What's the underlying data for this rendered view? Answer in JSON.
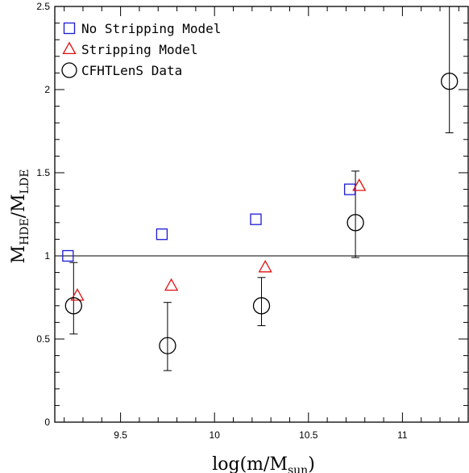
{
  "chart_data": {
    "type": "scatter",
    "xlabel_main": "log(m/M",
    "xlabel_sub": "sun",
    "xlabel_close": ")",
    "ylabel_num_main": "M",
    "ylabel_num_sub": "HDE",
    "ylabel_slash": "/",
    "ylabel_den_main": "M",
    "ylabel_den_sub": "LDE",
    "xlim": [
      9.15,
      11.35
    ],
    "ylim": [
      0,
      2.5
    ],
    "xticks": [
      9.5,
      10,
      10.5,
      11
    ],
    "xtick_labels": [
      "9.5",
      "10",
      "10.5",
      "11"
    ],
    "yticks": [
      0,
      0.5,
      1,
      1.5,
      2,
      2.5
    ],
    "ytick_labels": [
      "0",
      "0.5",
      "1",
      "1.5",
      "2",
      "2.5"
    ],
    "reference_line_y": 1,
    "legend_position": "top-left",
    "series": [
      {
        "name": "No Stripping Model",
        "marker": "square",
        "color": "#1a1ad6",
        "x": [
          9.22,
          9.72,
          10.22,
          10.72
        ],
        "y": [
          1.0,
          1.13,
          1.22,
          1.4
        ]
      },
      {
        "name": "Stripping Model",
        "marker": "triangle",
        "color": "#e01010",
        "x": [
          9.27,
          9.77,
          10.27,
          10.77
        ],
        "y": [
          0.76,
          0.82,
          0.93,
          1.42
        ]
      },
      {
        "name": "CFHTLenS Data",
        "marker": "circle",
        "color": "#000000",
        "x": [
          9.25,
          9.75,
          10.25,
          10.75,
          11.25
        ],
        "y": [
          0.7,
          0.46,
          0.7,
          1.2,
          2.05
        ],
        "err_low": [
          0.53,
          0.31,
          0.58,
          0.99,
          1.74
        ],
        "err_high": [
          0.96,
          0.72,
          0.87,
          1.51,
          2.5
        ]
      }
    ]
  }
}
